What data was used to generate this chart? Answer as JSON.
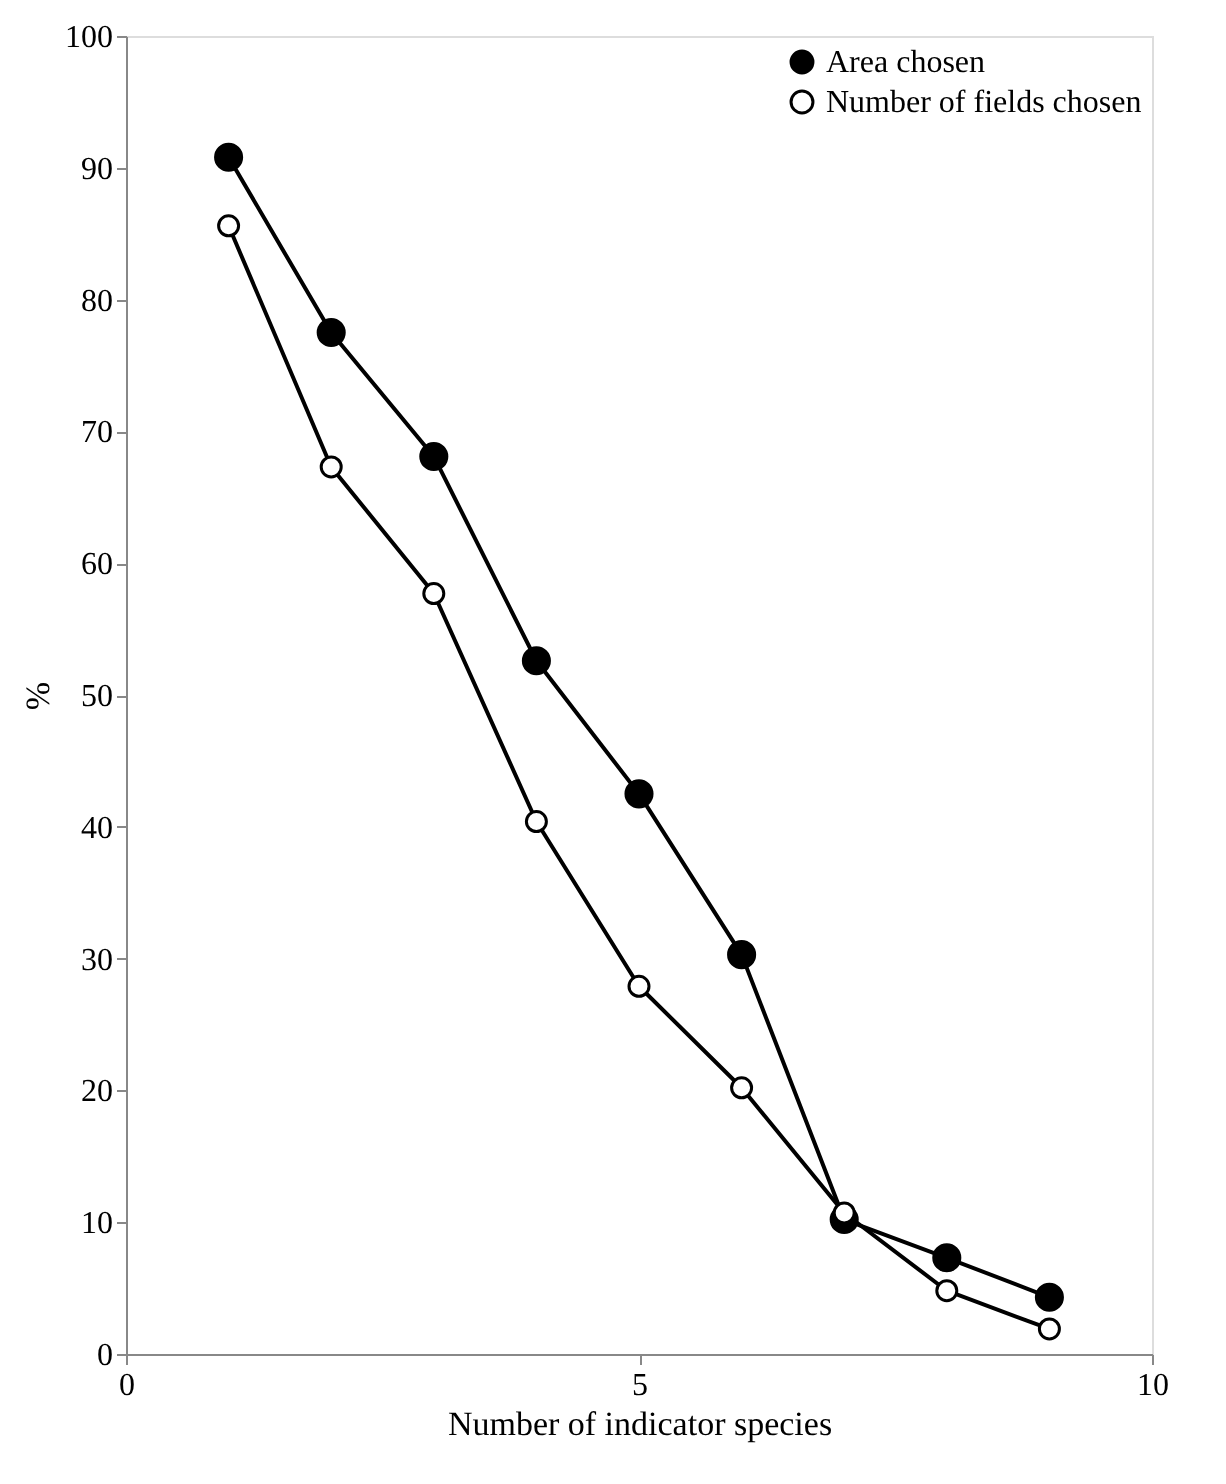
{
  "chart_data": {
    "type": "line",
    "xlabel": "Number of indicator species",
    "ylabel": "%",
    "x": [
      1,
      2,
      3,
      4,
      5,
      6,
      7,
      8,
      9
    ],
    "series": [
      {
        "name": "Area chosen",
        "color": "#000000",
        "values": [
          90.8,
          77.5,
          68.1,
          52.6,
          42.5,
          30.3,
          10.2,
          7.3,
          4.3
        ]
      },
      {
        "name": "Number of fields chosen",
        "color": "#000000",
        "values": [
          85.6,
          67.3,
          57.7,
          40.4,
          27.9,
          20.2,
          10.7,
          4.8,
          1.9
        ]
      }
    ],
    "xlim": [
      0,
      10
    ],
    "xticks": [
      0,
      5,
      10
    ],
    "ylim": [
      0,
      100
    ],
    "yticks": [
      0,
      10,
      20,
      30,
      40,
      50,
      60,
      70,
      80,
      90,
      100
    ],
    "grid": false,
    "legend": "top right",
    "marker": "circle",
    "line_style": "solid"
  }
}
